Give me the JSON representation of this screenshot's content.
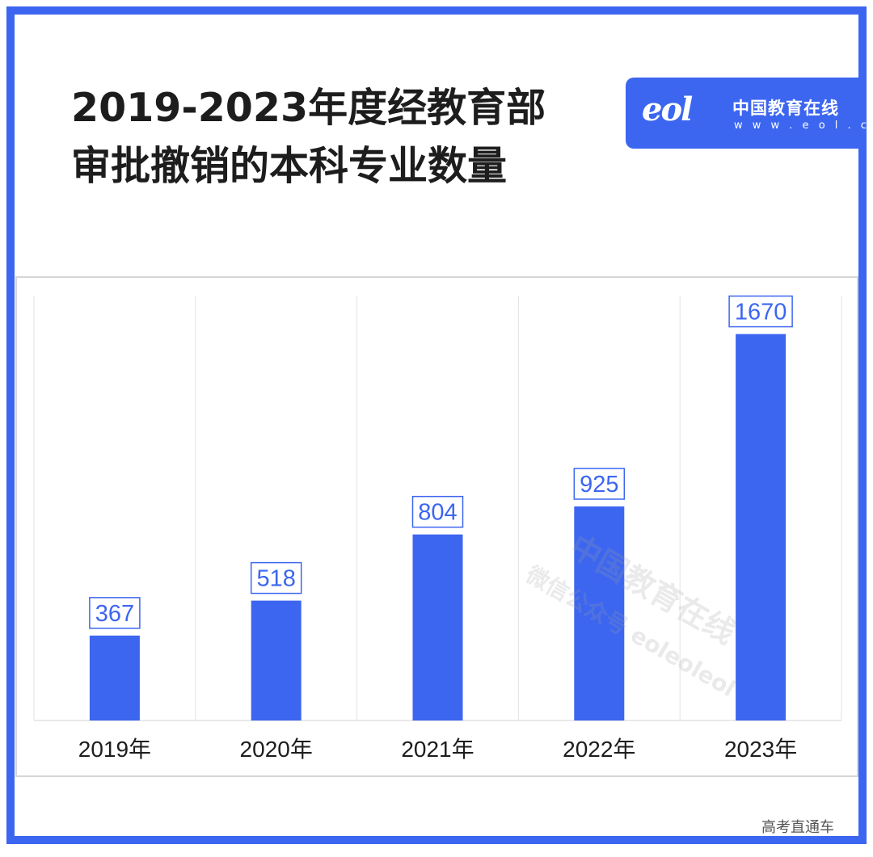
{
  "title": {
    "line1": "2019-2023年度经教育部",
    "line2": "审批撤销的本科专业数量"
  },
  "logo": {
    "mark": "eol",
    "name": "中国教育在线",
    "url": "w w w . e o l . c n"
  },
  "watermark": {
    "line1": "中国教育在线",
    "line2": "微信公众号 eoleoleol"
  },
  "source": "高考直通车",
  "colors": {
    "frame": "#3c66f0",
    "bar": "#3c66f0",
    "label_border": "#3c66f0",
    "label_text": "#3c66f0",
    "highlight": "#a7bcf7"
  },
  "chart_data": {
    "type": "bar",
    "categories": [
      "2019年",
      "2020年",
      "2021年",
      "2022年",
      "2023年"
    ],
    "values": [
      367,
      518,
      804,
      925,
      1670
    ],
    "data_labels": [
      "367",
      "518",
      "804",
      "925",
      "1670"
    ],
    "title": "",
    "xlabel": "",
    "ylabel": "",
    "ylim": [
      0,
      1836
    ],
    "grid": "vertical separators",
    "legend": "none"
  }
}
